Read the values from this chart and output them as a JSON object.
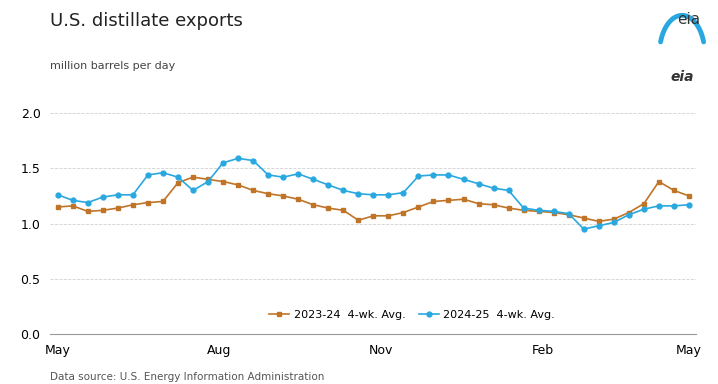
{
  "title": "U.S. distillate exports",
  "ylabel": "million barrels per day",
  "footnote": "Data source: U.S. Energy Information Administration",
  "ylim": [
    0.0,
    2.05
  ],
  "yticks": [
    0.0,
    0.5,
    1.0,
    1.5,
    2.0
  ],
  "xtick_labels": [
    "May",
    "Aug",
    "Nov",
    "Feb",
    "May"
  ],
  "legend_labels": [
    "2023-24  4-wk. Avg.",
    "2024-25  4-wk. Avg."
  ],
  "color_2023": "#c07428",
  "color_2024": "#29a8e0",
  "series_2023": [
    1.15,
    1.16,
    1.11,
    1.12,
    1.14,
    1.17,
    1.19,
    1.2,
    1.37,
    1.42,
    1.4,
    1.38,
    1.35,
    1.3,
    1.27,
    1.25,
    1.22,
    1.17,
    1.14,
    1.12,
    1.03,
    1.07,
    1.07,
    1.1,
    1.15,
    1.2,
    1.21,
    1.22,
    1.18,
    1.17,
    1.14,
    1.12,
    1.11,
    1.1,
    1.08,
    1.05,
    1.02,
    1.04,
    1.1,
    1.18,
    1.38,
    1.3,
    1.25
  ],
  "series_2024": [
    1.26,
    1.21,
    1.19,
    1.24,
    1.26,
    1.26,
    1.44,
    1.46,
    1.42,
    1.3,
    1.38,
    1.55,
    1.59,
    1.57,
    1.44,
    1.42,
    1.45,
    1.4,
    1.35,
    1.3,
    1.27,
    1.26,
    1.26,
    1.28,
    1.43,
    1.44,
    1.44,
    1.4,
    1.36,
    1.32,
    1.3,
    1.14,
    1.12,
    1.11,
    1.09,
    0.95,
    0.98,
    1.01,
    1.08,
    1.13,
    1.16,
    1.16,
    1.17
  ],
  "n_points": 43,
  "background_color": "#ffffff",
  "grid_color": "#cccccc",
  "title_fontsize": 13,
  "label_fontsize": 8,
  "tick_fontsize": 9,
  "footnote_fontsize": 7.5,
  "xtick_positions": [
    0,
    10.75,
    21.5,
    32.25,
    42
  ]
}
